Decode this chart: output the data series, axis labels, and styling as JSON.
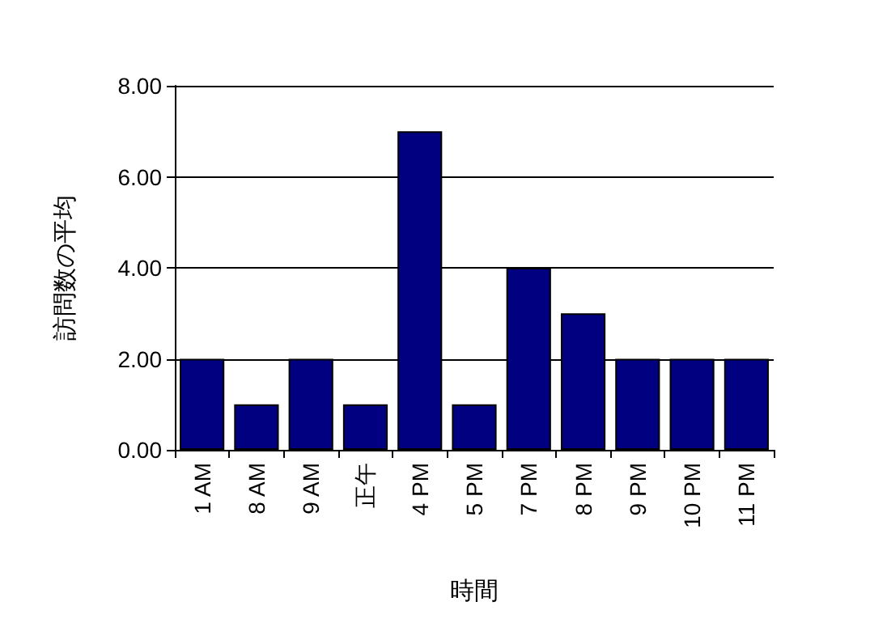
{
  "chart_data": {
    "type": "bar",
    "xlabel": "時間",
    "ylabel": "訪問数の平均",
    "categories": [
      "1 AM",
      "8 AM",
      "9 AM",
      "正午",
      "4 PM",
      "5 PM",
      "7 PM",
      "8 PM",
      "9 PM",
      "10 PM",
      "11 PM"
    ],
    "values": [
      2,
      1,
      2,
      1,
      7,
      1,
      4,
      3,
      2,
      2,
      2
    ],
    "color": "#000080",
    "ylim": [
      0,
      8
    ],
    "yticks": [
      {
        "value": 0,
        "label": "0.00"
      },
      {
        "value": 2,
        "label": "2.00"
      },
      {
        "value": 4,
        "label": "4.00"
      },
      {
        "value": 6,
        "label": "6.00"
      },
      {
        "value": 8,
        "label": "8.00"
      }
    ],
    "grid": "y"
  }
}
